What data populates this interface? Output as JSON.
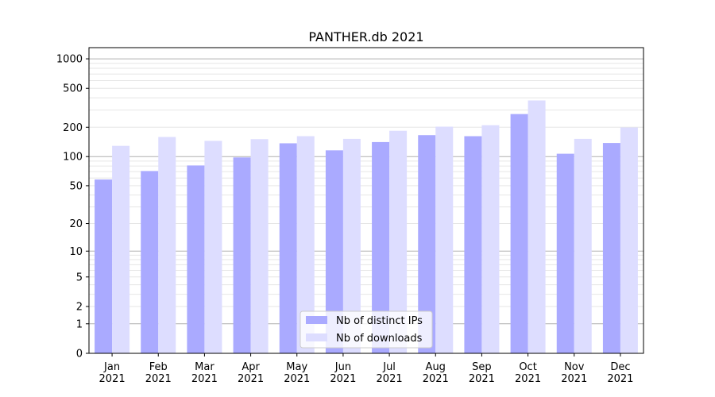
{
  "chart_data": {
    "type": "bar",
    "title": "PANTHER.db 2021",
    "xlabel": "",
    "ylabel": "",
    "scale": "symlog",
    "categories": [
      "Jan\n2021",
      "Feb\n2021",
      "Mar\n2021",
      "Apr\n2021",
      "May\n2021",
      "Jun\n2021",
      "Jul\n2021",
      "Aug\n2021",
      "Sep\n2021",
      "Oct\n2021",
      "Nov\n2021",
      "Dec\n2021"
    ],
    "series": [
      {
        "name": "Nb of distinct IPs",
        "color": "#aaaaff",
        "values": [
          58,
          71,
          81,
          98,
          137,
          116,
          141,
          166,
          162,
          273,
          107,
          138
        ]
      },
      {
        "name": "Nb of downloads",
        "color": "#ddddff",
        "values": [
          129,
          159,
          145,
          151,
          162,
          152,
          184,
          203,
          210,
          376,
          152,
          199
        ]
      }
    ],
    "y_ticks": [
      0,
      1,
      2,
      5,
      10,
      20,
      50,
      100,
      200,
      500,
      1000
    ],
    "ylim": [
      0,
      1300
    ],
    "grid": true,
    "legend": "lower-center"
  }
}
